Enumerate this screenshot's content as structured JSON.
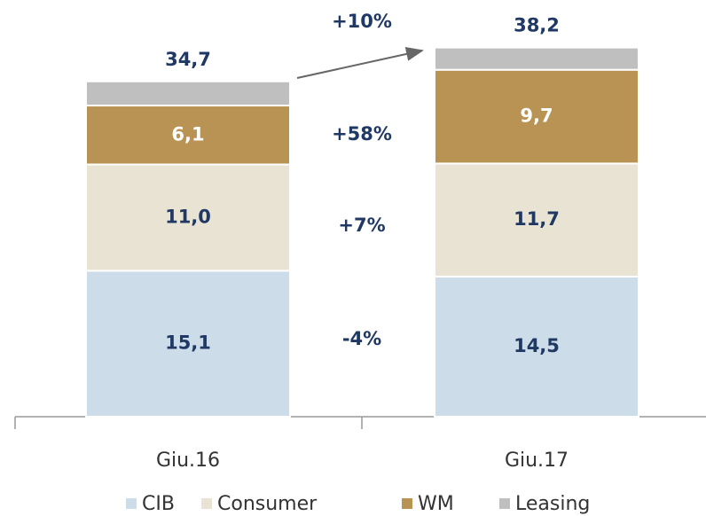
{
  "chart_data": {
    "type": "stacked_bar",
    "categories": [
      "Giu.16",
      "Giu.17"
    ],
    "series": [
      {
        "name": "CIB",
        "color": "#ccdce9",
        "values": [
          15.1,
          14.5
        ],
        "value_labels": [
          "15,1",
          "14,5"
        ]
      },
      {
        "name": "Consumer",
        "color": "#e9e3d3",
        "values": [
          11.0,
          11.7
        ],
        "value_labels": [
          "11,0",
          "11,7"
        ]
      },
      {
        "name": "WM",
        "color": "#b99353",
        "values": [
          6.1,
          9.7
        ],
        "value_labels": [
          "6,1",
          "9,7"
        ]
      },
      {
        "name": "Leasing",
        "color": "#bfbfbf",
        "values": [
          2.5,
          2.3
        ]
      }
    ],
    "totals": [
      34.7,
      38.2
    ],
    "total_labels": [
      "34,7",
      "38,2"
    ],
    "annotations": [
      "+10%",
      "+58%",
      "+7%",
      "-4%"
    ],
    "legend": "bottom"
  }
}
